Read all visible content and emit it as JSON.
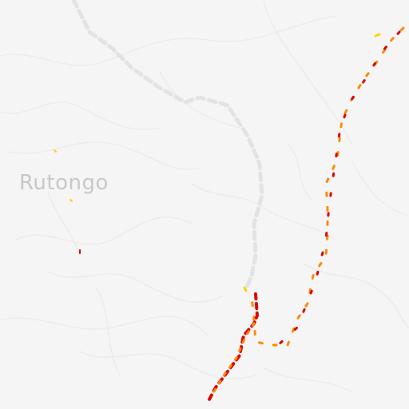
{
  "map": {
    "place_label": "Rutongo",
    "colors": {
      "background": "#f5f5f5",
      "terrain_lines": "#ebebeb",
      "dashed_road": "#e3e3e3",
      "traffic_red": "#e00000",
      "traffic_orange": "#ff8a00",
      "traffic_yellow": "#ffd400",
      "label": "#c8c8c8"
    }
  }
}
